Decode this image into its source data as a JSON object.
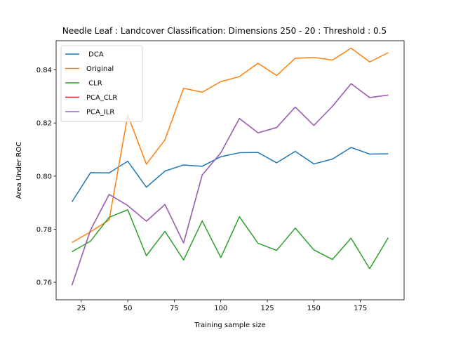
{
  "chart_data": {
    "type": "line",
    "title": "Needle Leaf : Landcover Classification: Dimensions 250 - 20 : Threshold : 0.5",
    "xlabel": "Training sample size",
    "ylabel": "Area Under ROC",
    "xlim": [
      11.5,
      198.5
    ],
    "ylim": [
      0.7534,
      0.851
    ],
    "xticks": [
      25,
      50,
      75,
      100,
      125,
      150,
      175
    ],
    "yticks": [
      0.76,
      0.78,
      0.8,
      0.82,
      0.84
    ],
    "ytick_labels": [
      "0.76",
      "0.78",
      "0.80",
      "0.82",
      "0.84"
    ],
    "grid": false,
    "legend_position": "top-left",
    "x": [
      20,
      30,
      40,
      50,
      60,
      70,
      80,
      90,
      100,
      110,
      120,
      130,
      140,
      150,
      160,
      170,
      180,
      190
    ],
    "series": [
      {
        "name": " DCA",
        "color": "#1f77b4",
        "values": [
          0.7903,
          0.8013,
          0.8012,
          0.8056,
          0.7958,
          0.8019,
          0.8042,
          0.8037,
          0.8073,
          0.8088,
          0.8089,
          0.805,
          0.8093,
          0.8046,
          0.8064,
          0.8108,
          0.8083,
          0.8084
        ]
      },
      {
        "name": "Original",
        "color": "#ff7f0e",
        "values": [
          0.775,
          0.779,
          0.7835,
          0.823,
          0.8045,
          0.8137,
          0.8331,
          0.8316,
          0.8356,
          0.8375,
          0.8425,
          0.8379,
          0.8444,
          0.8447,
          0.8437,
          0.8482,
          0.843,
          0.8465
        ]
      },
      {
        "name": " CLR",
        "color": "#2ca02c",
        "values": [
          0.7715,
          0.7755,
          0.7845,
          0.7873,
          0.77,
          0.7792,
          0.7684,
          0.7831,
          0.7693,
          0.7847,
          0.7747,
          0.772,
          0.7804,
          0.7722,
          0.7686,
          0.7766,
          0.7651,
          0.7768
        ]
      },
      {
        "name": "PCA_CLR",
        "color": "#d62728",
        "values": [
          0.7589,
          0.7797,
          0.7931,
          0.7889,
          0.783,
          0.7893,
          0.7748,
          0.8004,
          0.8088,
          0.8217,
          0.8163,
          0.8183,
          0.826,
          0.8191,
          0.8263,
          0.8348,
          0.8296,
          0.8305
        ]
      },
      {
        "name": "PCA_ILR",
        "color": "#9467bd",
        "values": [
          0.7589,
          0.7797,
          0.7931,
          0.7889,
          0.783,
          0.7893,
          0.7748,
          0.8004,
          0.8088,
          0.8217,
          0.8163,
          0.8183,
          0.826,
          0.8191,
          0.8263,
          0.8348,
          0.8296,
          0.8305
        ]
      }
    ]
  }
}
